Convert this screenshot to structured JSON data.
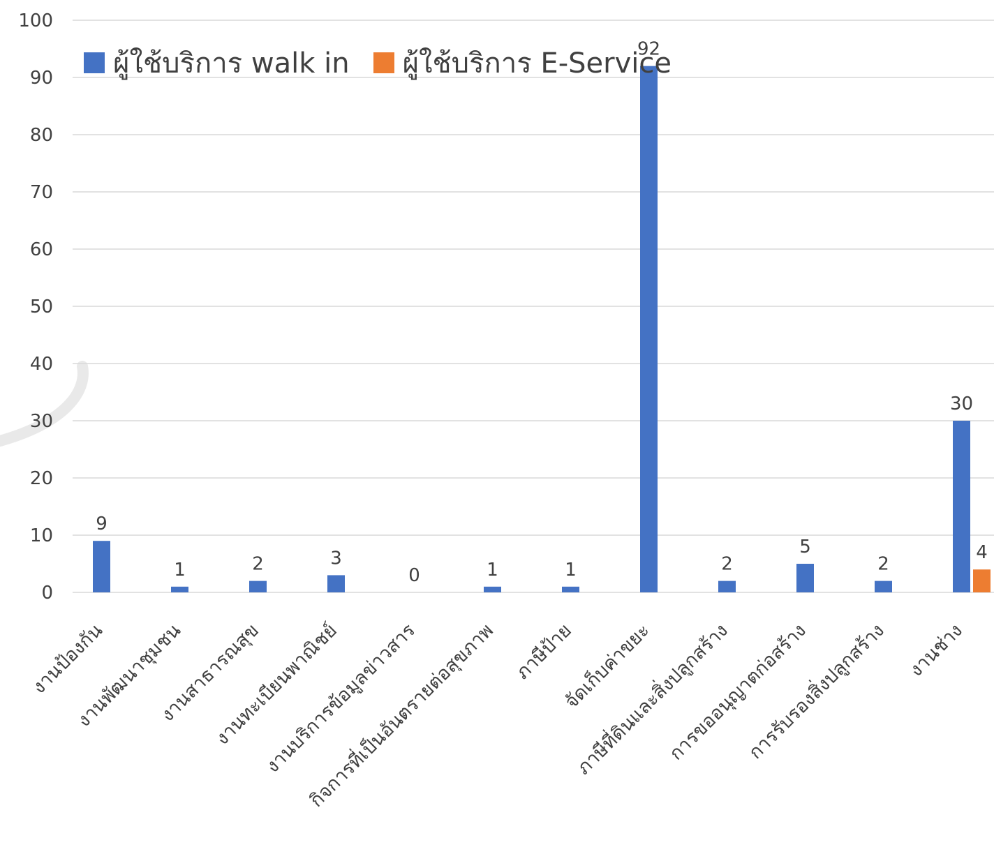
{
  "chart_data": {
    "type": "bar",
    "categories": [
      "งานป้องกัน",
      "งานพัฒนาชุมชน",
      "งานสาธารณสุข",
      "งานทะเบียนพาณิชย์",
      "งานบริการข้อมูลข่าวสาร",
      "กิจการที่เป็นอันตรายต่อสุขภาพ",
      "ภาษีป้าย",
      "จัดเก็บค่าขยะ",
      "ภาษีที่ดินและสิ่งปลูกสร้าง",
      "การขออนุญาตก่อสร้าง",
      "การรับรองสิ่งปลูกสร้าง",
      "งานช่าง"
    ],
    "series": [
      {
        "name": "ผู้ใช้บริการ walk in",
        "color": "#4472C4",
        "values": [
          9,
          1,
          2,
          3,
          0,
          1,
          1,
          92,
          2,
          5,
          2,
          30
        ],
        "labels": [
          "9",
          "1",
          "2",
          "3",
          "0",
          "1",
          "1",
          "92",
          "2",
          "5",
          "2",
          "30"
        ]
      },
      {
        "name": "ผู้ใช้บริการ E-Service",
        "color": "#ED7D31",
        "values": [
          0,
          0,
          0,
          0,
          0,
          0,
          0,
          0,
          0,
          0,
          0,
          4
        ],
        "labels": [
          "",
          "",
          "",
          "",
          "",
          "",
          "",
          "",
          "",
          "",
          "",
          "4"
        ]
      }
    ],
    "ylim": [
      0,
      100
    ],
    "yticks": [
      "0",
      "10",
      "20",
      "30",
      "40",
      "50",
      "60",
      "70",
      "80",
      "90",
      "100"
    ],
    "grid": true,
    "legend_position": "top-left"
  }
}
